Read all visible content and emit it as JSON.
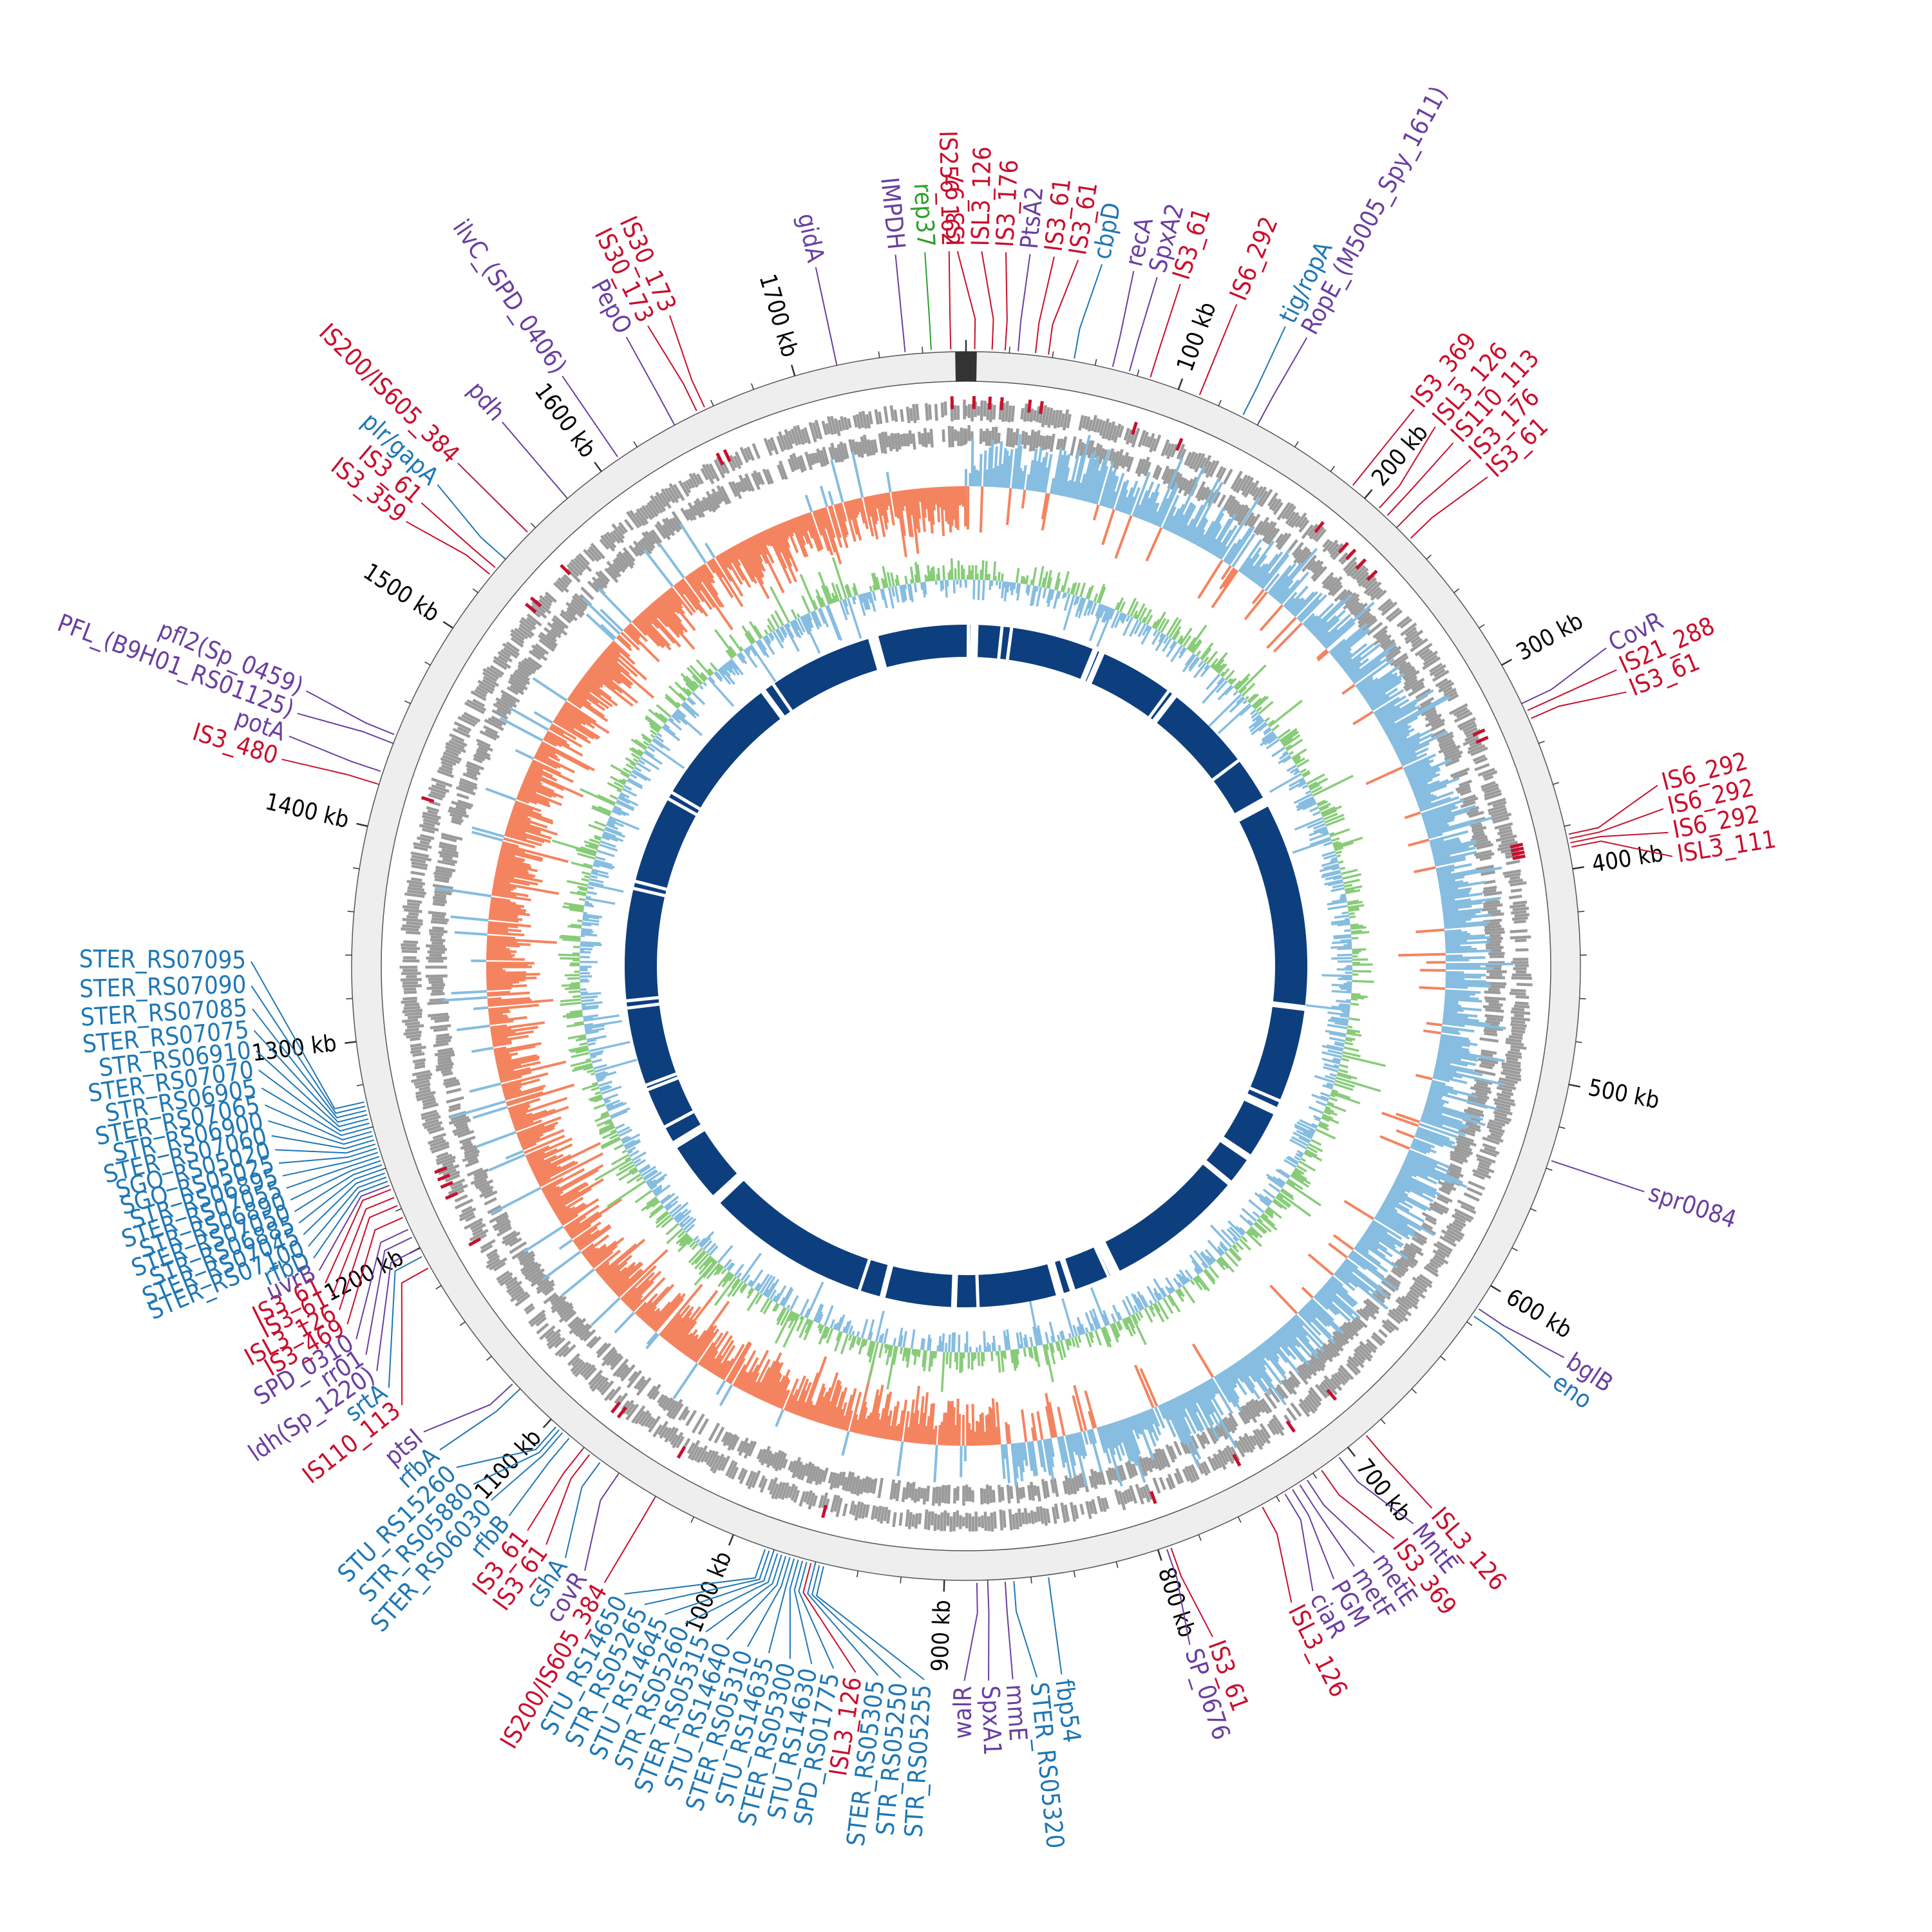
{
  "figure": {
    "description_type": "circular genome map",
    "genome_length_kb": 1780,
    "colors": {
      "insertion_sequence": "#c8102e",
      "virulence_gene": "#6a3fa0",
      "mobile_element": "#1f77b4",
      "plasmid_gene": "#2ca02c",
      "backbone_ring": "#eeeeee",
      "cds_tracks": "#9b9b9b",
      "gc_skew_positive": "#86bde0",
      "gc_skew_negative": "#f4845f",
      "gc_content_pos": "#88cc7a",
      "gc_content_neg": "#86bde0",
      "blast_hits": "#0d3f7f"
    }
  },
  "ticks": [
    "100 kb",
    "200 kb",
    "300 kb",
    "400 kb",
    "500 kb",
    "600 kb",
    "700 kb",
    "800 kb",
    "900 kb",
    "1000 kb",
    "1100 kb",
    "1200 kb",
    "1300 kb",
    "1400 kb",
    "1500 kb",
    "1600 kb",
    "1700 kb"
  ],
  "labels": [
    {
      "text": "IS256_162",
      "cat": "is",
      "pos": 1773
    },
    {
      "text": "IS3_97",
      "cat": "is",
      "pos": 4
    },
    {
      "text": "ISL3_126",
      "cat": "is",
      "pos": 12
    },
    {
      "text": "IS3_176",
      "cat": "is",
      "pos": 18
    },
    {
      "text": "IS3_61",
      "cat": "is",
      "pos": 32
    },
    {
      "text": "IS3_61",
      "cat": "is",
      "pos": 38
    },
    {
      "text": "cbpD",
      "cat": "mobile",
      "pos": 50
    },
    {
      "text": "recA",
      "cat": "vir",
      "pos": 68
    },
    {
      "text": "SpxA2",
      "cat": "vir",
      "pos": 76
    },
    {
      "text": "IS3_61",
      "cat": "is",
      "pos": 86
    },
    {
      "text": "IS6_292",
      "cat": "is",
      "pos": 110
    },
    {
      "text": "tig/ropA",
      "cat": "mobile",
      "pos": 132
    },
    {
      "text": "RopE_(M5005_Spy_1611)",
      "cat": "vir",
      "pos": 140
    },
    {
      "text": "IS3_369",
      "cat": "is",
      "pos": 192
    },
    {
      "text": "ISL3_126",
      "cat": "is",
      "pos": 208
    },
    {
      "text": "IS110_113",
      "cat": "is",
      "pos": 213
    },
    {
      "text": "IS3_176",
      "cat": "is",
      "pos": 220
    },
    {
      "text": "IS3_61",
      "cat": "is",
      "pos": 228
    },
    {
      "text": "CovR",
      "cat": "vir",
      "pos": 320
    },
    {
      "text": "IS21_288",
      "cat": "is",
      "pos": 324
    },
    {
      "text": "IS3_61",
      "cat": "is",
      "pos": 328
    },
    {
      "text": "IS6_292",
      "cat": "is",
      "pos": 384
    },
    {
      "text": "IS6_292",
      "cat": "is",
      "pos": 386
    },
    {
      "text": "IS6_292",
      "cat": "is",
      "pos": 388
    },
    {
      "text": "ISL3_111",
      "cat": "is",
      "pos": 390
    },
    {
      "text": "spr0084",
      "cat": "vir",
      "pos": 536
    },
    {
      "text": "bglB",
      "cat": "vir",
      "pos": 612
    },
    {
      "text": "eno",
      "cat": "mobile",
      "pos": 616
    },
    {
      "text": "ISL3_126",
      "cat": "is",
      "pos": 690
    },
    {
      "text": "MntE",
      "cat": "vir",
      "pos": 706
    },
    {
      "text": "IS3_369",
      "cat": "is",
      "pos": 716
    },
    {
      "text": "metE",
      "cat": "vir",
      "pos": 724
    },
    {
      "text": "metF",
      "cat": "vir",
      "pos": 728
    },
    {
      "text": "PGM",
      "cat": "vir",
      "pos": 732
    },
    {
      "text": "ciaR",
      "cat": "vir",
      "pos": 736
    },
    {
      "text": "ISL3_126",
      "cat": "is",
      "pos": 748
    },
    {
      "text": "IS3_61",
      "cat": "is",
      "pos": 794
    },
    {
      "text": "SP_0676",
      "cat": "vir",
      "pos": 796
    },
    {
      "text": "fbp54",
      "cat": "mobile",
      "pos": 852
    },
    {
      "text": "STER_RS05320",
      "cat": "mobile",
      "pos": 868
    },
    {
      "text": "mmE",
      "cat": "vir",
      "pos": 872
    },
    {
      "text": "SpxA1",
      "cat": "vir",
      "pos": 880
    },
    {
      "text": "walR",
      "cat": "vir",
      "pos": 885
    },
    {
      "text": "STR_RS05255",
      "cat": "mobile",
      "pos": 956
    },
    {
      "text": "STR_RS05250",
      "cat": "mobile",
      "pos": 958
    },
    {
      "text": "STER_RS05305",
      "cat": "mobile",
      "pos": 960
    },
    {
      "text": "ISL3_126",
      "cat": "is",
      "pos": 962
    },
    {
      "text": "SPD_RS01775",
      "cat": "mobile",
      "pos": 964
    },
    {
      "text": "STU_RS14630",
      "cat": "mobile",
      "pos": 966
    },
    {
      "text": "STER_RS05300",
      "cat": "mobile",
      "pos": 968
    },
    {
      "text": "STU_RS14635",
      "cat": "mobile",
      "pos": 970
    },
    {
      "text": "STER_RS05310",
      "cat": "mobile",
      "pos": 972
    },
    {
      "text": "STU_RS14640",
      "cat": "mobile",
      "pos": 974
    },
    {
      "text": "STER_RS05315",
      "cat": "mobile",
      "pos": 976
    },
    {
      "text": "STR_RS05260",
      "cat": "mobile",
      "pos": 978
    },
    {
      "text": "STU_RS14645",
      "cat": "mobile",
      "pos": 980
    },
    {
      "text": "STR_RS05265",
      "cat": "mobile",
      "pos": 982
    },
    {
      "text": "STU_RS14650",
      "cat": "mobile",
      "pos": 984
    },
    {
      "text": "IS200/IS605_384",
      "cat": "is",
      "pos": 1040
    },
    {
      "text": "covR",
      "cat": "vir",
      "pos": 1060
    },
    {
      "text": "cshA",
      "cat": "mobile",
      "pos": 1070
    },
    {
      "text": "IS3_61",
      "cat": "is",
      "pos": 1076
    },
    {
      "text": "IS3_61",
      "cat": "is",
      "pos": 1080
    },
    {
      "text": "rfbB",
      "cat": "mobile",
      "pos": 1088
    },
    {
      "text": "STER_RS06030",
      "cat": "mobile",
      "pos": 1092
    },
    {
      "text": "STR_RS05880",
      "cat": "mobile",
      "pos": 1094
    },
    {
      "text": "STU_RS15260",
      "cat": "mobile",
      "pos": 1096
    },
    {
      "text": "rfbA",
      "cat": "mobile",
      "pos": 1120
    },
    {
      "text": "ptsI",
      "cat": "vir",
      "pos": 1124
    },
    {
      "text": "IS110_113",
      "cat": "is",
      "pos": 1190
    },
    {
      "text": "srtA",
      "cat": "mobile",
      "pos": 1196
    },
    {
      "text": "ldh(Sp_1220)",
      "cat": "vir",
      "pos": 1200
    },
    {
      "text": "rr01",
      "cat": "vir",
      "pos": 1206
    },
    {
      "text": "SPD_0310",
      "cat": "vir",
      "pos": 1210
    },
    {
      "text": "IS3_469",
      "cat": "is",
      "pos": 1216
    },
    {
      "text": "uvrB",
      "cat": "vir",
      "pos": 1232
    },
    {
      "text": "rfbD",
      "cat": "mobile",
      "pos": 1234
    },
    {
      "text": "STER_RS07100",
      "cat": "mobile",
      "pos": 1236
    },
    {
      "text": "ISL3_126",
      "cat": "is",
      "pos": 1222
    },
    {
      "text": "IS3_61",
      "cat": "is",
      "pos": 1226
    },
    {
      "text": "IS3_61",
      "cat": "is",
      "pos": 1230
    },
    {
      "text": "STER_RS07045",
      "cat": "mobile",
      "pos": 1238
    },
    {
      "text": "STR_RS06885",
      "cat": "mobile",
      "pos": 1240
    },
    {
      "text": "STER_RS07050",
      "cat": "mobile",
      "pos": 1242
    },
    {
      "text": "STR_RS06890",
      "cat": "mobile",
      "pos": 1244
    },
    {
      "text": "STER_RS07055",
      "cat": "mobile",
      "pos": 1246
    },
    {
      "text": "STR_RS06895",
      "cat": "mobile",
      "pos": 1248
    },
    {
      "text": "SGO_RS05025",
      "cat": "mobile",
      "pos": 1250
    },
    {
      "text": "SGO_RS05020",
      "cat": "mobile",
      "pos": 1252
    },
    {
      "text": "STER_RS07060",
      "cat": "mobile",
      "pos": 1254
    },
    {
      "text": "STR_RS06900",
      "cat": "mobile",
      "pos": 1256
    },
    {
      "text": "STER_RS07065",
      "cat": "mobile",
      "pos": 1258
    },
    {
      "text": "STR_RS06905",
      "cat": "mobile",
      "pos": 1260
    },
    {
      "text": "STER_RS07070",
      "cat": "mobile",
      "pos": 1262
    },
    {
      "text": "STR_RS06910",
      "cat": "mobile",
      "pos": 1264
    },
    {
      "text": "STER_RS07075",
      "cat": "mobile",
      "pos": 1266
    },
    {
      "text": "STER_RS07085",
      "cat": "mobile",
      "pos": 1268
    },
    {
      "text": "STER_RS07090",
      "cat": "mobile",
      "pos": 1270
    },
    {
      "text": "STER_RS07095",
      "cat": "mobile",
      "pos": 1272
    },
    {
      "text": "IS3_480",
      "cat": "is",
      "pos": 1420
    },
    {
      "text": "potA",
      "cat": "vir",
      "pos": 1426
    },
    {
      "text": "IS3_359",
      "cat": "is",
      "pos": 1530
    },
    {
      "text": "IS3_61",
      "cat": "is",
      "pos": 1534
    },
    {
      "text": "PFL_(B9H01_RS01125)",
      "cat": "vir",
      "pos": 1440
    },
    {
      "text": "pfl2(Sp_0459)",
      "cat": "vir",
      "pos": 1444
    },
    {
      "text": "plr/gapA",
      "cat": "mobile",
      "pos": 1540
    },
    {
      "text": "IS200/IS605_384",
      "cat": "is",
      "pos": 1556
    },
    {
      "text": "pdh",
      "cat": "vir",
      "pos": 1580
    },
    {
      "text": "ilvC_(SPD_0406)",
      "cat": "vir",
      "pos": 1610
    },
    {
      "text": "PepO",
      "cat": "vir",
      "pos": 1640
    },
    {
      "text": "IS30_173",
      "cat": "is",
      "pos": 1652
    },
    {
      "text": "IS30_173",
      "cat": "is",
      "pos": 1656
    },
    {
      "text": "gidA",
      "cat": "vir",
      "pos": 1720
    },
    {
      "text": "IMPDH",
      "cat": "vir",
      "pos": 1752
    },
    {
      "text": "rep37",
      "cat": "plasmid",
      "pos": 1764
    },
    {
      "text": "PtsA2",
      "cat": "vir",
      "pos": 24
    }
  ]
}
